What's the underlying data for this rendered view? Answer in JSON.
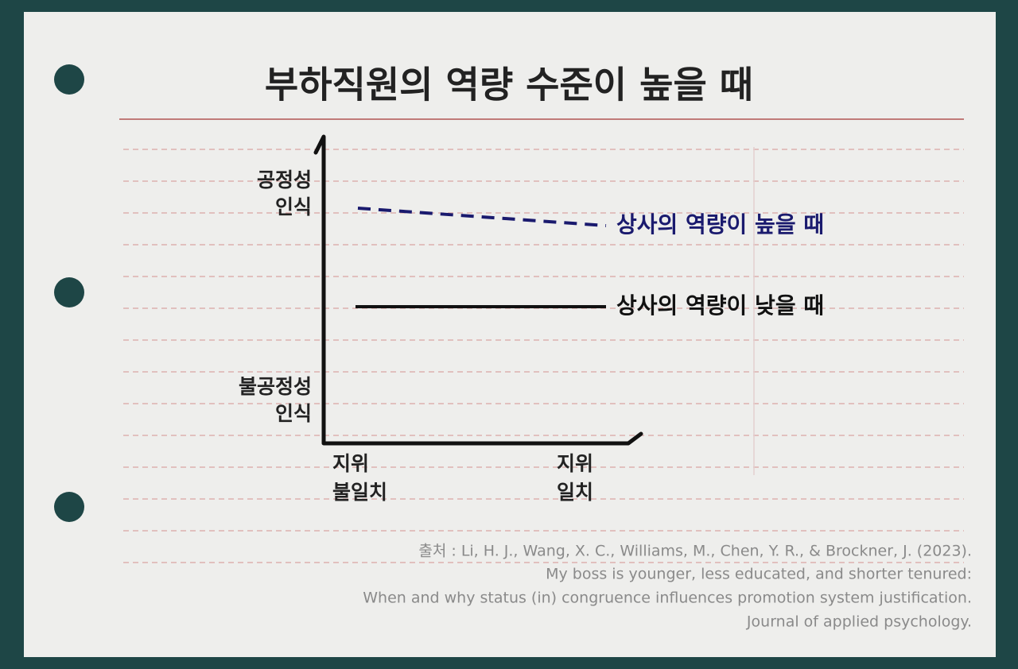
{
  "title": "부하직원의 역량 수준이 높을 때",
  "y_axis": {
    "top": [
      "공정성",
      "인식"
    ],
    "bottom": [
      "불공정성",
      "인식"
    ]
  },
  "x_axis": {
    "left": [
      "지위",
      "불일치"
    ],
    "right": [
      "지위",
      "일치"
    ]
  },
  "lines": [
    {
      "label": "상사의 역량이 높을 때"
    },
    {
      "label": "상사의 역량이 낮을 때"
    }
  ],
  "source": [
    "출처 : Li, H. J., Wang, X. C., Williams, M., Chen, Y. R., & Brockner, J. (2023).",
    "My boss is younger, less educated, and shorter tenured:",
    "When and why status (in) congruence influences promotion system justification.",
    "Journal of applied psychology."
  ]
}
